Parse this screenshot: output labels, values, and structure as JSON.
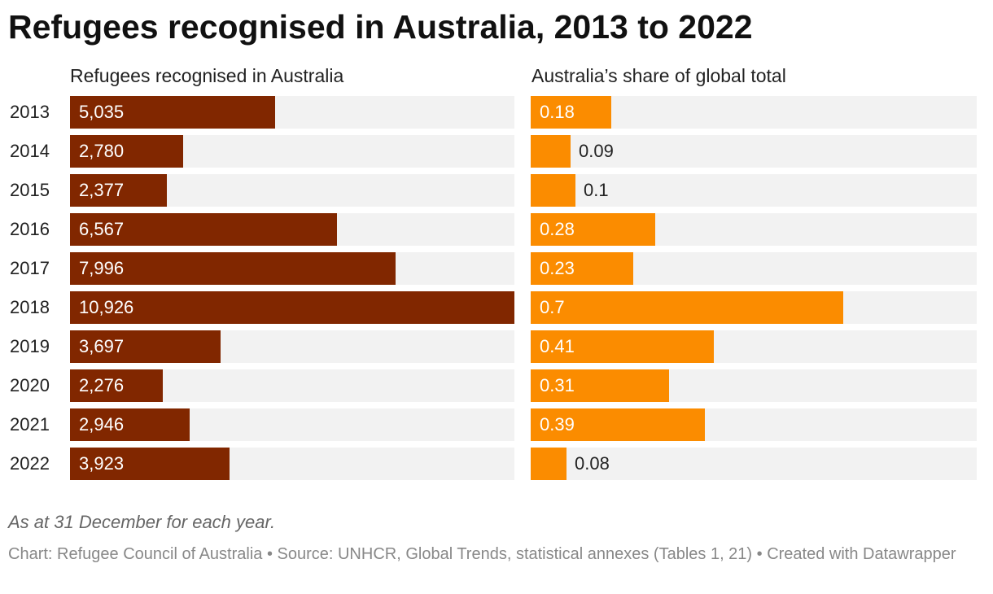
{
  "title": "Refugees recognised in Australia, 2013 to 2022",
  "chart_data": {
    "type": "bar",
    "orientation": "horizontal",
    "title": "Refugees recognised in Australia, 2013 to 2022",
    "categories": [
      "2013",
      "2014",
      "2015",
      "2016",
      "2017",
      "2018",
      "2019",
      "2020",
      "2021",
      "2022"
    ],
    "series": [
      {
        "name": "Refugees recognised in Australia",
        "values": [
          5035,
          2780,
          2377,
          6567,
          7996,
          10926,
          3697,
          2276,
          2946,
          3923
        ],
        "labels": [
          "5,035",
          "2,780",
          "2,377",
          "6,567",
          "7,996",
          "10,926",
          "3,697",
          "2,276",
          "2,946",
          "3,923"
        ],
        "xlim": [
          0,
          10926
        ],
        "color": "#812700"
      },
      {
        "name": "Australia’s share of global total",
        "values": [
          0.18,
          0.09,
          0.1,
          0.28,
          0.23,
          0.7,
          0.41,
          0.31,
          0.39,
          0.08
        ],
        "labels": [
          "0.18",
          "0.09",
          "0.1",
          "0.28",
          "0.23",
          "0.7",
          "0.41",
          "0.31",
          "0.39",
          "0.08"
        ],
        "xlim": [
          0,
          1.0
        ],
        "color": "#fb8c00"
      }
    ]
  },
  "note": "As at 31 December for each year.",
  "footer": "Chart: Refugee Council of Australia • Source: UNHCR, Global Trends, statistical annexes (Tables 1, 21) • Created with Datawrapper"
}
